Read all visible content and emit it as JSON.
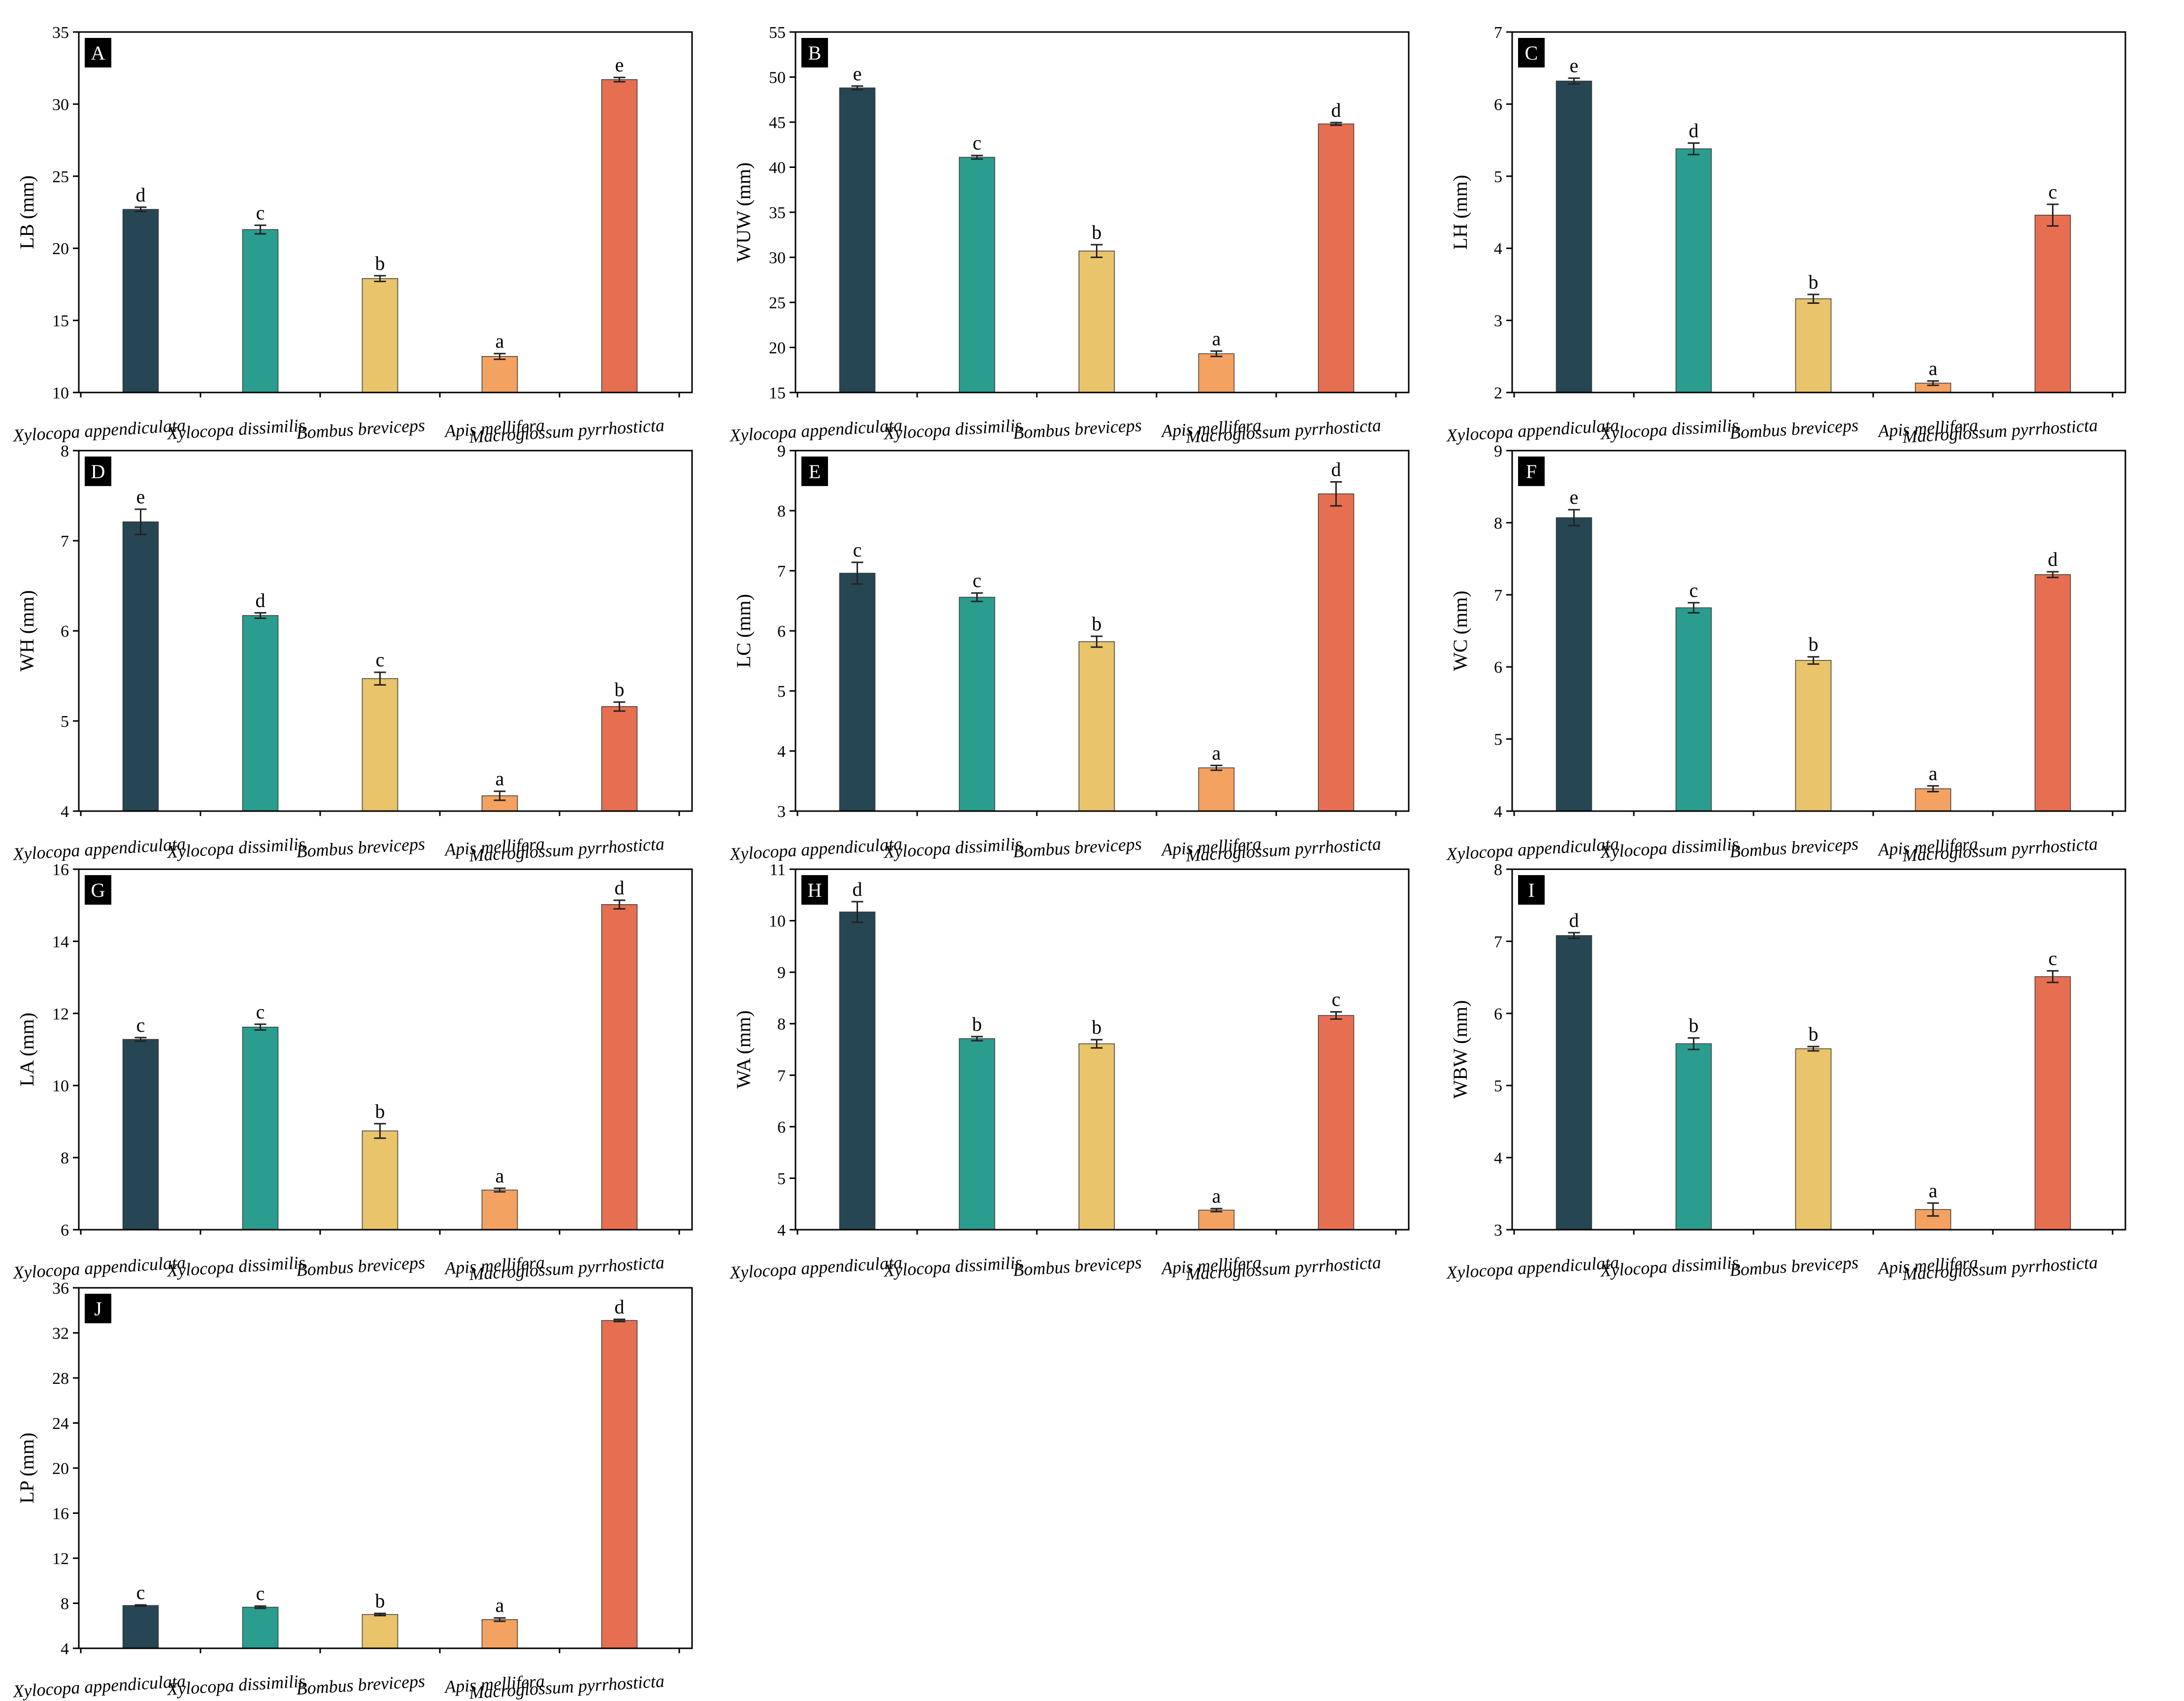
{
  "figure": {
    "categories": [
      "Xylocopa appendiculata",
      "Xylocopa dissimilis",
      "Bombus breviceps",
      "Apis mellifera",
      "Macroglossum pyrrhosticta"
    ],
    "colors": [
      "#264653",
      "#2A9D8F",
      "#E9C46A",
      "#F4A261",
      "#E76F51"
    ]
  },
  "chart_data": [
    {
      "type": "bar",
      "panel_label": "A",
      "ylabel": "LB (mm)",
      "ylim": [
        10,
        35
      ],
      "yticks": [
        "10",
        "15",
        "20",
        "25",
        "30",
        "35"
      ],
      "categories": [
        "Xylocopa appendiculata",
        "Xylocopa dissimilis",
        "Bombus breviceps",
        "Apis mellifera",
        "Macroglossum pyrrhosticta"
      ],
      "values": [
        22.7,
        21.3,
        17.9,
        12.5,
        31.7
      ],
      "errors": [
        0.15,
        0.3,
        0.2,
        0.2,
        0.15
      ],
      "significance": [
        "d",
        "c",
        "b",
        "a",
        "e"
      ]
    },
    {
      "type": "bar",
      "panel_label": "B",
      "ylabel": "WUW (mm)",
      "ylim": [
        15,
        55
      ],
      "yticks": [
        "15",
        "20",
        "25",
        "30",
        "35",
        "40",
        "45",
        "50",
        "55"
      ],
      "categories": [
        "Xylocopa appendiculata",
        "Xylocopa dissimilis",
        "Bombus breviceps",
        "Apis mellifera",
        "Macroglossum pyrrhosticta"
      ],
      "values": [
        48.8,
        41.1,
        30.7,
        19.3,
        44.8
      ],
      "errors": [
        0.2,
        0.2,
        0.7,
        0.3,
        0.15
      ],
      "significance": [
        "e",
        "c",
        "b",
        "a",
        "d"
      ]
    },
    {
      "type": "bar",
      "panel_label": "C",
      "ylabel": "LH (mm)",
      "ylim": [
        2,
        7
      ],
      "yticks": [
        "2",
        "3",
        "4",
        "5",
        "6",
        "7"
      ],
      "categories": [
        "Xylocopa appendiculata",
        "Xylocopa dissimilis",
        "Bombus breviceps",
        "Apis mellifera",
        "Macroglossum pyrrhosticta"
      ],
      "values": [
        6.32,
        5.38,
        3.3,
        2.13,
        4.46
      ],
      "errors": [
        0.04,
        0.08,
        0.06,
        0.03,
        0.15
      ],
      "significance": [
        "e",
        "d",
        "b",
        "a",
        "c"
      ]
    },
    {
      "type": "bar",
      "panel_label": "D",
      "ylabel": "WH (mm)",
      "ylim": [
        4,
        8
      ],
      "yticks": [
        "4",
        "5",
        "6",
        "7",
        "8"
      ],
      "categories": [
        "Xylocopa appendiculata",
        "Xylocopa dissimilis",
        "Bombus breviceps",
        "Apis mellifera",
        "Macroglossum pyrrhosticta"
      ],
      "values": [
        7.21,
        6.17,
        5.47,
        4.17,
        5.16
      ],
      "errors": [
        0.14,
        0.03,
        0.07,
        0.05,
        0.05
      ],
      "significance": [
        "e",
        "d",
        "c",
        "a",
        "b"
      ]
    },
    {
      "type": "bar",
      "panel_label": "E",
      "ylabel": "LC (mm)",
      "ylim": [
        3,
        9
      ],
      "yticks": [
        "3",
        "4",
        "5",
        "6",
        "7",
        "8",
        "9"
      ],
      "categories": [
        "Xylocopa appendiculata",
        "Xylocopa dissimilis",
        "Bombus breviceps",
        "Apis mellifera",
        "Macroglossum pyrrhosticta"
      ],
      "values": [
        6.96,
        6.56,
        5.82,
        3.72,
        8.28
      ],
      "errors": [
        0.18,
        0.07,
        0.09,
        0.04,
        0.2
      ],
      "significance": [
        "c",
        "c",
        "b",
        "a",
        "d"
      ]
    },
    {
      "type": "bar",
      "panel_label": "F",
      "ylabel": "WC (mm)",
      "ylim": [
        4,
        9
      ],
      "yticks": [
        "4",
        "5",
        "6",
        "7",
        "8",
        "9"
      ],
      "categories": [
        "Xylocopa appendiculata",
        "Xylocopa dissimilis",
        "Bombus breviceps",
        "Apis mellifera",
        "Macroglossum pyrrhosticta"
      ],
      "values": [
        8.07,
        6.82,
        6.09,
        4.31,
        7.28
      ],
      "errors": [
        0.11,
        0.07,
        0.05,
        0.04,
        0.04
      ],
      "significance": [
        "e",
        "c",
        "b",
        "a",
        "d"
      ]
    },
    {
      "type": "bar",
      "panel_label": "G",
      "ylabel": "LA (mm)",
      "ylim": [
        6,
        16
      ],
      "yticks": [
        "6",
        "8",
        "10",
        "12",
        "14",
        "16"
      ],
      "categories": [
        "Xylocopa appendiculata",
        "Xylocopa dissimilis",
        "Bombus breviceps",
        "Apis mellifera",
        "Macroglossum pyrrhosticta"
      ],
      "values": [
        11.28,
        11.62,
        8.74,
        7.1,
        15.02
      ],
      "errors": [
        0.05,
        0.08,
        0.2,
        0.05,
        0.12
      ],
      "significance": [
        "c",
        "c",
        "b",
        "a",
        "d"
      ]
    },
    {
      "type": "bar",
      "panel_label": "H",
      "ylabel": "WA (mm)",
      "ylim": [
        4,
        11
      ],
      "yticks": [
        "4",
        "5",
        "6",
        "7",
        "8",
        "9",
        "10",
        "11"
      ],
      "categories": [
        "Xylocopa appendiculata",
        "Xylocopa dissimilis",
        "Bombus breviceps",
        "Apis mellifera",
        "Macroglossum pyrrhosticta"
      ],
      "values": [
        10.17,
        7.71,
        7.61,
        4.38,
        8.16
      ],
      "errors": [
        0.2,
        0.04,
        0.08,
        0.03,
        0.07
      ],
      "significance": [
        "d",
        "b",
        "b",
        "a",
        "c"
      ]
    },
    {
      "type": "bar",
      "panel_label": "I",
      "ylabel": "WBW (mm)",
      "ylim": [
        3,
        8
      ],
      "yticks": [
        "3",
        "4",
        "5",
        "6",
        "7",
        "8"
      ],
      "categories": [
        "Xylocopa appendiculata",
        "Xylocopa dissimilis",
        "Bombus breviceps",
        "Apis mellifera",
        "Macroglossum pyrrhosticta"
      ],
      "values": [
        7.08,
        5.58,
        5.51,
        3.28,
        6.51
      ],
      "errors": [
        0.04,
        0.08,
        0.03,
        0.09,
        0.08
      ],
      "significance": [
        "d",
        "b",
        "b",
        "a",
        "c"
      ]
    },
    {
      "type": "bar",
      "panel_label": "J",
      "ylabel": "LP (mm)",
      "ylim": [
        4,
        36
      ],
      "yticks": [
        "4",
        "8",
        "12",
        "16",
        "20",
        "24",
        "28",
        "32",
        "36"
      ],
      "categories": [
        "Xylocopa appendiculata",
        "Xylocopa dissimilis",
        "Bombus breviceps",
        "Apis mellifera",
        "Macroglossum pyrrhosticta"
      ],
      "values": [
        7.8,
        7.65,
        7.0,
        6.55,
        33.1
      ],
      "errors": [
        0.05,
        0.1,
        0.1,
        0.15,
        0.1
      ],
      "significance": [
        "c",
        "c",
        "b",
        "a",
        "d"
      ]
    }
  ]
}
